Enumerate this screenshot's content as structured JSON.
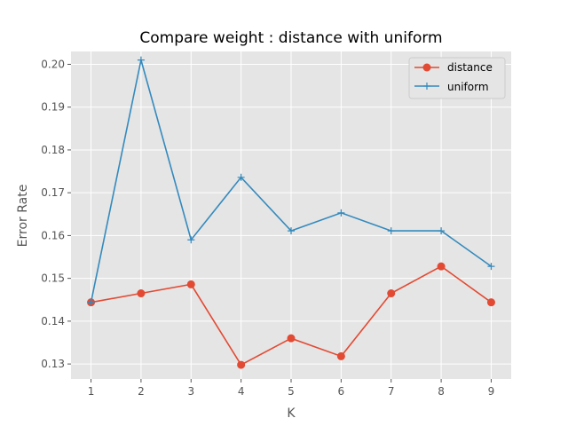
{
  "chart_data": {
    "type": "line",
    "title": "Compare weight : distance  with  uniform",
    "xlabel": "K",
    "ylabel": "Error Rate",
    "x": [
      1,
      2,
      3,
      4,
      5,
      6,
      7,
      8,
      9
    ],
    "xticks": [
      "1",
      "2",
      "3",
      "4",
      "5",
      "6",
      "7",
      "8",
      "9"
    ],
    "xlim": [
      0.6,
      9.4
    ],
    "ylim": [
      0.1265,
      0.203
    ],
    "yticks": [
      0.13,
      0.14,
      0.15,
      0.16,
      0.17,
      0.18,
      0.19,
      0.2
    ],
    "ytick_labels": [
      "0.13",
      "0.14",
      "0.15",
      "0.16",
      "0.17",
      "0.18",
      "0.19",
      "0.20"
    ],
    "grid": true,
    "legend_position": "top-right",
    "series": [
      {
        "name": "distance",
        "color": "#E24A33",
        "marker": "circle",
        "values": [
          0.1444,
          0.1465,
          0.1486,
          0.1298,
          0.136,
          0.1318,
          0.1465,
          0.1528,
          0.1444
        ]
      },
      {
        "name": "uniform",
        "color": "#348ABD",
        "marker": "plus",
        "values": [
          0.1444,
          0.201,
          0.159,
          0.1736,
          0.1611,
          0.1653,
          0.1611,
          0.1611,
          0.1528
        ]
      }
    ]
  }
}
